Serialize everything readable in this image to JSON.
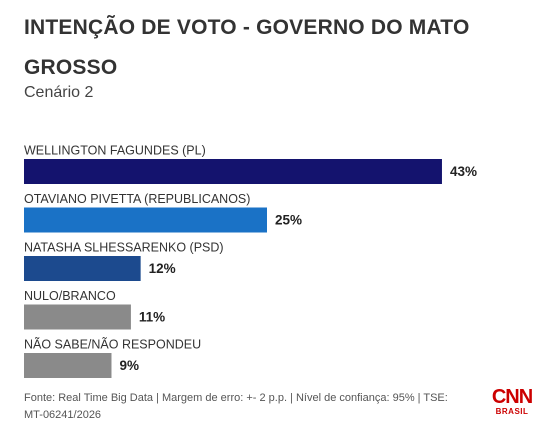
{
  "chart_data": {
    "type": "bar",
    "title": "INTENÇÃO DE VOTO - GOVERNO DO MATO GROSSO",
    "subtitle": "Cenário 2",
    "categories": [
      "WELLINGTON FAGUNDES (PL)",
      "OTAVIANO PIVETTA (REPUBLICANOS)",
      "NATASHA SLHESSARENKO (PSD)",
      "NULO/BRANCO",
      "NÃO SABE/NÃO RESPONDEU"
    ],
    "values": [
      43,
      25,
      12,
      11,
      9
    ],
    "value_labels": [
      "43%",
      "25%",
      "12%",
      "11%",
      "9%"
    ],
    "colors": [
      "#14136e",
      "#1a72c6",
      "#1c4a8e",
      "#8a8a8a",
      "#8a8a8a"
    ],
    "source": "Fonte: Real Time Big Data | Margem de erro: +- 2 p.p. | Nível de confiança: 95% | TSE: MT-06241/2026",
    "logo": {
      "main": "CNN",
      "sub": "BRASIL"
    }
  }
}
